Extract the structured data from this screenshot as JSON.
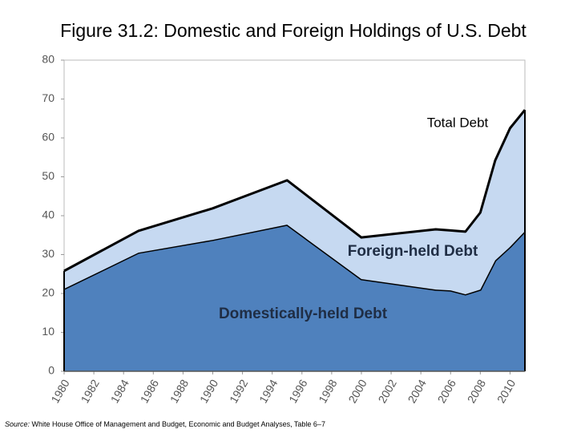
{
  "chart_data": {
    "type": "stacked_area",
    "title": "Figure 31.2: Domestic and Foreign Holdings of U.S. Debt",
    "annotation": "Total Debt",
    "source_label": "Source:",
    "source_text": "White House Office of Management and Budget, Economic and Budget Analyses, Table 6–7",
    "x": [
      1980,
      1985,
      1990,
      1995,
      2000,
      2005,
      2006,
      2007,
      2008,
      2009,
      2010,
      2011
    ],
    "series": [
      {
        "name": "Domestically-held Debt",
        "color": "#4f81bd",
        "values": [
          21.2,
          30.5,
          33.8,
          37.7,
          23.7,
          21.0,
          20.8,
          19.8,
          21.0,
          28.5,
          32.0,
          36.0
        ]
      },
      {
        "name": "Foreign-held Debt",
        "color": "#c6d9f1",
        "values": [
          4.6,
          5.6,
          8.1,
          11.4,
          10.7,
          15.5,
          15.4,
          16.1,
          19.8,
          25.7,
          30.5,
          31.2
        ]
      }
    ],
    "xlim": [
      1980,
      2011
    ],
    "xticks": [
      1980,
      1982,
      1984,
      1986,
      1988,
      1990,
      1992,
      1994,
      1996,
      1998,
      2000,
      2002,
      2004,
      2006,
      2008,
      2010
    ],
    "ylim": [
      0,
      80
    ],
    "yticks": [
      0,
      10,
      20,
      30,
      40,
      50,
      60,
      70,
      80
    ]
  }
}
